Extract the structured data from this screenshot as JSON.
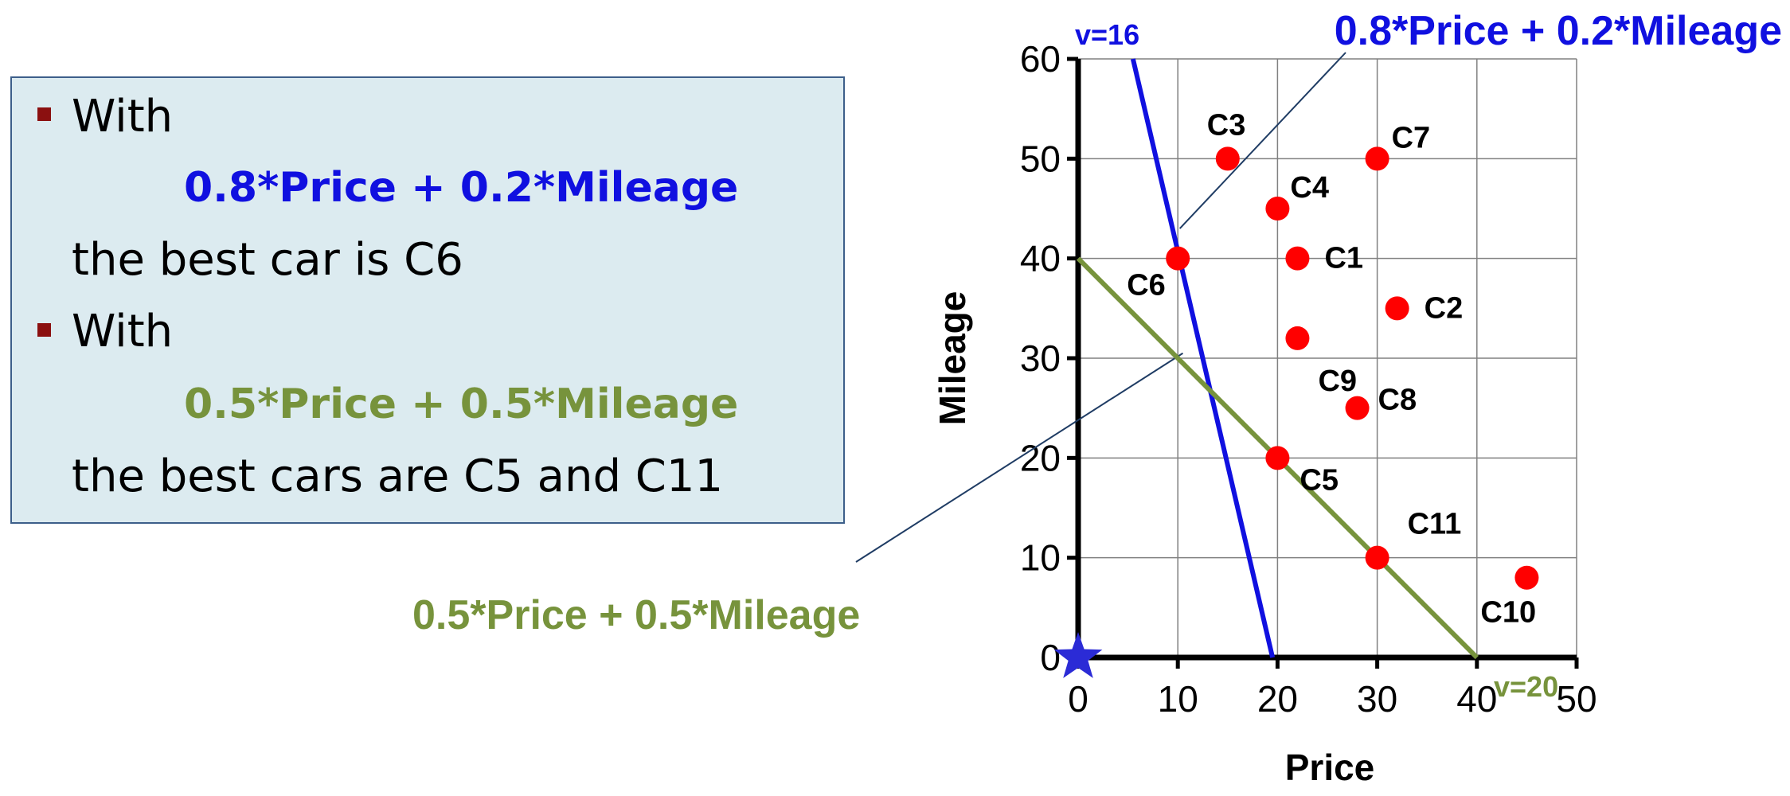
{
  "textbox": {
    "items": [
      {
        "lead": "With",
        "formula": "0.8*Price + 0.2*Mileage",
        "formula_color": "#1010e0",
        "result": "the best car is C6"
      },
      {
        "lead": "With",
        "formula": "0.5*Price + 0.5*Mileage",
        "formula_color": "#77933c",
        "result": "the best cars are C5 and C11"
      }
    ],
    "bullet_color": "#8b1010",
    "background": "#dcebf0"
  },
  "callouts": {
    "blue_formula": "0.8*Price + 0.2*Mileage",
    "green_formula": "0.5*Price + 0.5*Mileage",
    "v16_label": "v=16",
    "v20_label": "v=20"
  },
  "colors": {
    "blue": "#1010e0",
    "green": "#77933c",
    "point": "#ff0000",
    "star": "#2b2bd6"
  },
  "chart_data": {
    "type": "scatter",
    "xlabel": "Price",
    "ylabel": "Mileage",
    "xlim": [
      0,
      50
    ],
    "ylim": [
      0,
      60
    ],
    "xticks": [
      0,
      10,
      20,
      30,
      40,
      50
    ],
    "yticks": [
      0,
      10,
      20,
      30,
      40,
      50,
      60
    ],
    "grid": true,
    "points": [
      {
        "label": "C1",
        "x": 22,
        "y": 40
      },
      {
        "label": "C2",
        "x": 32,
        "y": 35
      },
      {
        "label": "C3",
        "x": 15,
        "y": 50
      },
      {
        "label": "C4",
        "x": 20,
        "y": 45
      },
      {
        "label": "C5",
        "x": 20,
        "y": 20
      },
      {
        "label": "C6",
        "x": 10,
        "y": 40
      },
      {
        "label": "C7",
        "x": 30,
        "y": 50
      },
      {
        "label": "C8",
        "x": 28,
        "y": 25
      },
      {
        "label": "C9",
        "x": 22,
        "y": 32
      },
      {
        "label": "C10",
        "x": 45,
        "y": 8
      },
      {
        "label": "C11",
        "x": 30,
        "y": 10
      }
    ],
    "lines": [
      {
        "name": "0.8*Price + 0.2*Mileage",
        "from": [
          5.5,
          60
        ],
        "to": [
          19.5,
          0
        ]
      },
      {
        "name": "0.5*Price + 0.5*Mileage",
        "from": [
          0,
          40
        ],
        "to": [
          40,
          0
        ]
      }
    ],
    "origin_marker": {
      "shape": "star",
      "x": 0,
      "y": 0
    }
  }
}
